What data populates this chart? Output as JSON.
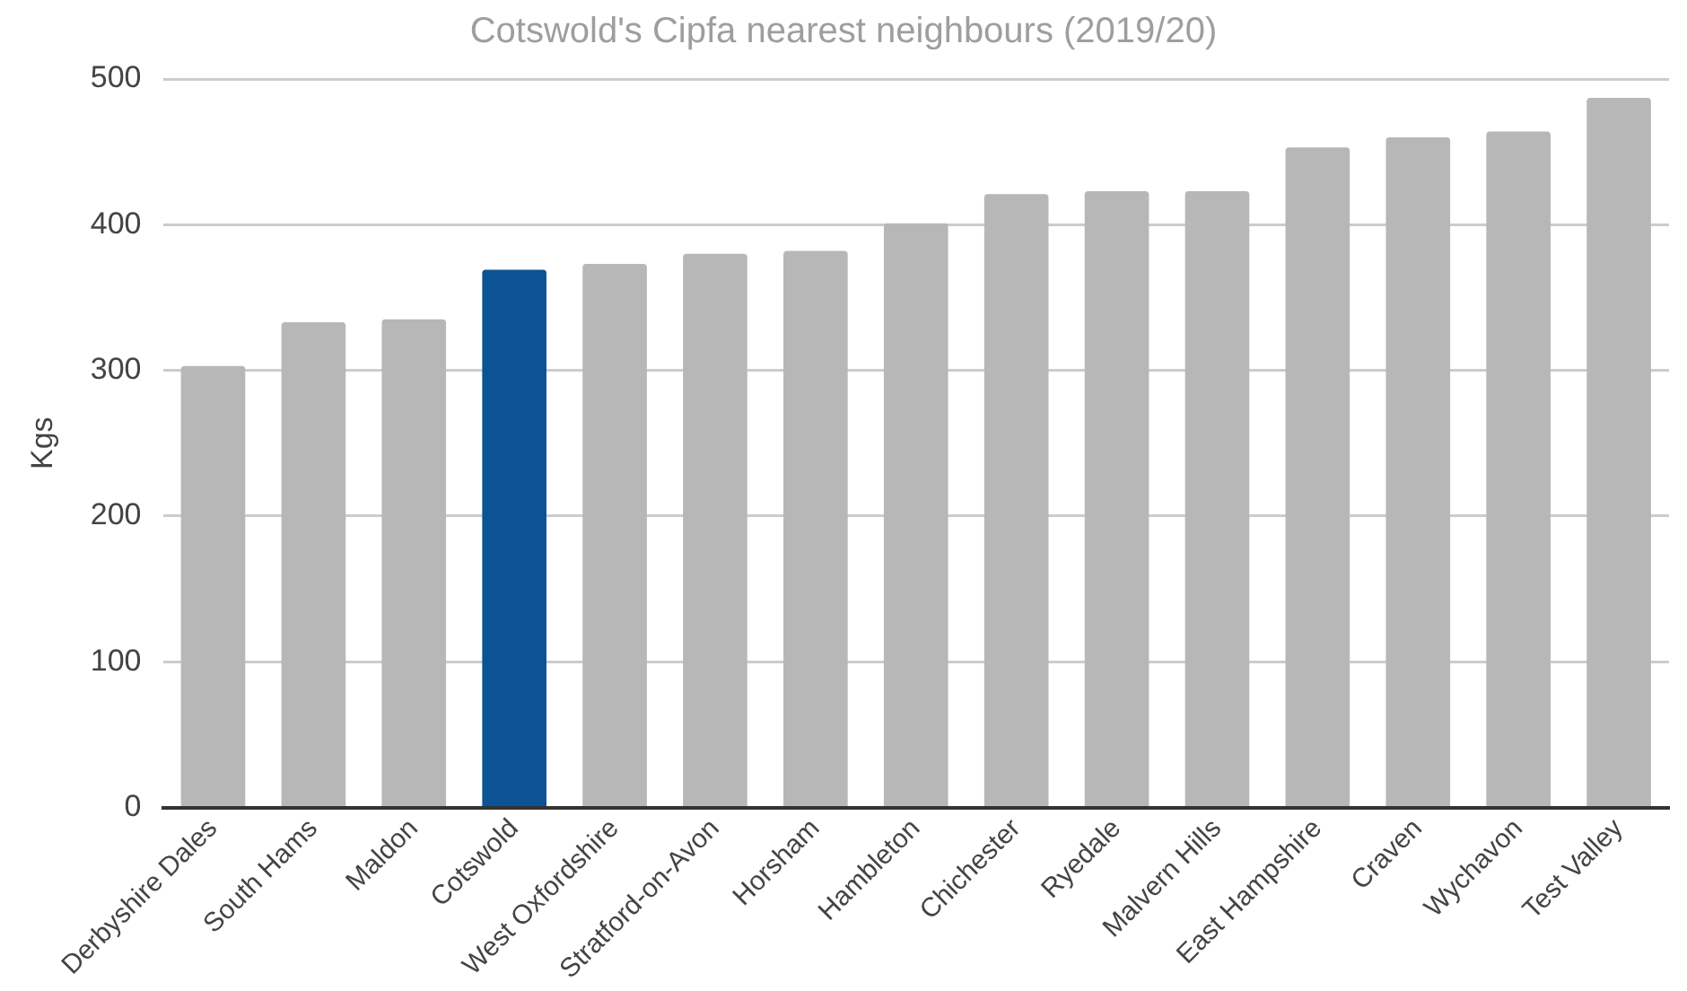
{
  "chart_data": {
    "type": "bar",
    "title": "Cotswold's Cipfa nearest neighbours (2019/20)",
    "ylabel": "Kgs",
    "categories": [
      "Derbyshire Dales",
      "South Hams",
      "Maldon",
      "Cotswold",
      "West Oxfordshire",
      "Stratford-on-Avon",
      "Horsham",
      "Hambleton",
      "Chichester",
      "Ryedale",
      "Malvern Hills",
      "East Hampshire",
      "Craven",
      "Wychavon",
      "Test Valley"
    ],
    "values": [
      303,
      333,
      335,
      369,
      373,
      380,
      382,
      401,
      421,
      423,
      423,
      453,
      460,
      464,
      487
    ],
    "colors": [
      "#b7b7b7",
      "#b7b7b7",
      "#b7b7b7",
      "#0b5394",
      "#b7b7b7",
      "#b7b7b7",
      "#b7b7b7",
      "#b7b7b7",
      "#b7b7b7",
      "#b7b7b7",
      "#b7b7b7",
      "#b7b7b7",
      "#b7b7b7",
      "#b7b7b7",
      "#b7b7b7"
    ],
    "ylim": [
      0,
      500
    ],
    "yticks": [
      0,
      100,
      200,
      300,
      400,
      500
    ],
    "grid": "y",
    "legend": false
  }
}
